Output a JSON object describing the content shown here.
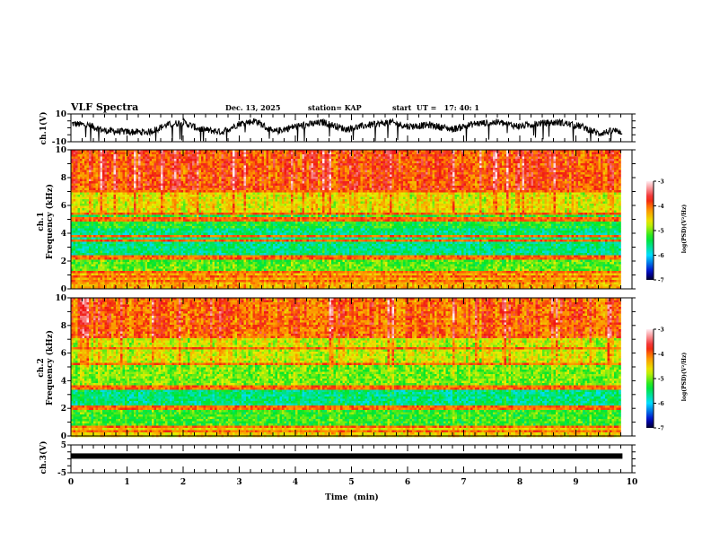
{
  "header": {
    "title": "VLF Spectra",
    "date": "Dec. 13, 2025",
    "station": "station= KAP",
    "start": "start  UT =   17: 40: 1"
  },
  "chart_data": [
    {
      "type": "line",
      "name": "ch1-waveform",
      "ylabel": "ch.1(V)",
      "ylim": [
        -10,
        10
      ],
      "yticks": [
        "10",
        "-10"
      ],
      "xlim": [
        0,
        10
      ],
      "data_end_min": 9.83,
      "description_series": "noisy voltage trace oscillating roughly between -8 and 8 V",
      "envelope": [
        {
          "x": 0.0,
          "y": 3
        },
        {
          "x": 0.3,
          "y": 2
        },
        {
          "x": 0.6,
          "y": -2
        },
        {
          "x": 1.0,
          "y": -3
        },
        {
          "x": 1.4,
          "y": -3
        },
        {
          "x": 1.7,
          "y": 2
        },
        {
          "x": 2.0,
          "y": 4
        },
        {
          "x": 2.3,
          "y": -1
        },
        {
          "x": 2.7,
          "y": -3
        },
        {
          "x": 3.0,
          "y": 3
        },
        {
          "x": 3.3,
          "y": 5
        },
        {
          "x": 3.6,
          "y": -3
        },
        {
          "x": 4.0,
          "y": 1
        },
        {
          "x": 4.5,
          "y": 4
        },
        {
          "x": 4.9,
          "y": -1
        },
        {
          "x": 5.3,
          "y": 2
        },
        {
          "x": 5.7,
          "y": 4
        },
        {
          "x": 6.0,
          "y": 1
        },
        {
          "x": 6.4,
          "y": 2
        },
        {
          "x": 6.8,
          "y": -1
        },
        {
          "x": 7.2,
          "y": 3
        },
        {
          "x": 7.6,
          "y": 4
        },
        {
          "x": 8.0,
          "y": 1
        },
        {
          "x": 8.3,
          "y": 3
        },
        {
          "x": 8.7,
          "y": 4
        },
        {
          "x": 9.1,
          "y": 1
        },
        {
          "x": 9.4,
          "y": -4
        },
        {
          "x": 9.7,
          "y": -2
        },
        {
          "x": 9.83,
          "y": -3
        }
      ]
    },
    {
      "type": "heatmap",
      "name": "ch1-spectrogram",
      "ylabel_top": "ch.1",
      "ylabel": "Frequency  (kHz)",
      "ylim": [
        0,
        10
      ],
      "yticks": [
        "0",
        "2",
        "4",
        "6",
        "8",
        "10"
      ],
      "xlim": [
        0,
        10
      ],
      "data_end_min": 9.83,
      "colorbar": {
        "label": "log(PSD)(V²/Hz)",
        "range": [
          -7,
          -3
        ],
        "ticks": [
          "-3",
          "-4",
          "-5",
          "-6",
          "-7"
        ]
      },
      "bands_khz": [
        {
          "from": 7.0,
          "to": 10.0,
          "level": -3.9
        },
        {
          "from": 5.5,
          "to": 7.0,
          "level": -4.6
        },
        {
          "from": 4.3,
          "to": 5.5,
          "level": -5.3
        },
        {
          "from": 2.4,
          "to": 4.3,
          "level": -5.6
        },
        {
          "from": 1.2,
          "to": 2.4,
          "level": -5.1
        },
        {
          "from": 0.0,
          "to": 1.2,
          "level": -4.3
        }
      ],
      "lines_khz": [
        0.5,
        0.9,
        1.2,
        2.2,
        2.4,
        3.4,
        3.8,
        5.0,
        5.4,
        7.0
      ]
    },
    {
      "type": "heatmap",
      "name": "ch2-spectrogram",
      "ylabel_top": "ch.2",
      "ylabel": "Frequency  (kHz)",
      "ylim": [
        0,
        10
      ],
      "yticks": [
        "0",
        "2",
        "4",
        "6",
        "8",
        "10"
      ],
      "xlim": [
        0,
        10
      ],
      "data_end_min": 9.83,
      "colorbar": {
        "label": "log(PSD)(V²/Hz)",
        "range": [
          -7,
          -3
        ],
        "ticks": [
          "-3",
          "-4",
          "-5",
          "-6",
          "-7"
        ]
      },
      "bands_khz": [
        {
          "from": 7.0,
          "to": 10.0,
          "level": -4.0
        },
        {
          "from": 5.2,
          "to": 7.0,
          "level": -4.7
        },
        {
          "from": 3.6,
          "to": 5.2,
          "level": -5.0
        },
        {
          "from": 2.0,
          "to": 3.6,
          "level": -5.6
        },
        {
          "from": 0.6,
          "to": 2.0,
          "level": -5.2
        },
        {
          "from": 0.0,
          "to": 0.6,
          "level": -4.5
        }
      ],
      "lines_khz": [
        0.3,
        0.6,
        1.9,
        2.1,
        3.4,
        3.6,
        5.2,
        6.3,
        7.9
      ]
    },
    {
      "type": "line",
      "name": "ch3-waveform",
      "ylabel": "ch.3(V)",
      "ylim": [
        -5,
        5
      ],
      "yticks": [
        "5",
        "-5"
      ],
      "xlim": [
        0,
        10
      ],
      "data_end_min": 9.83,
      "level_v": 1.0,
      "xlabel": "Time  (min)",
      "xticks": [
        "0",
        "1",
        "2",
        "3",
        "4",
        "5",
        "6",
        "7",
        "8",
        "9",
        "10"
      ]
    }
  ]
}
